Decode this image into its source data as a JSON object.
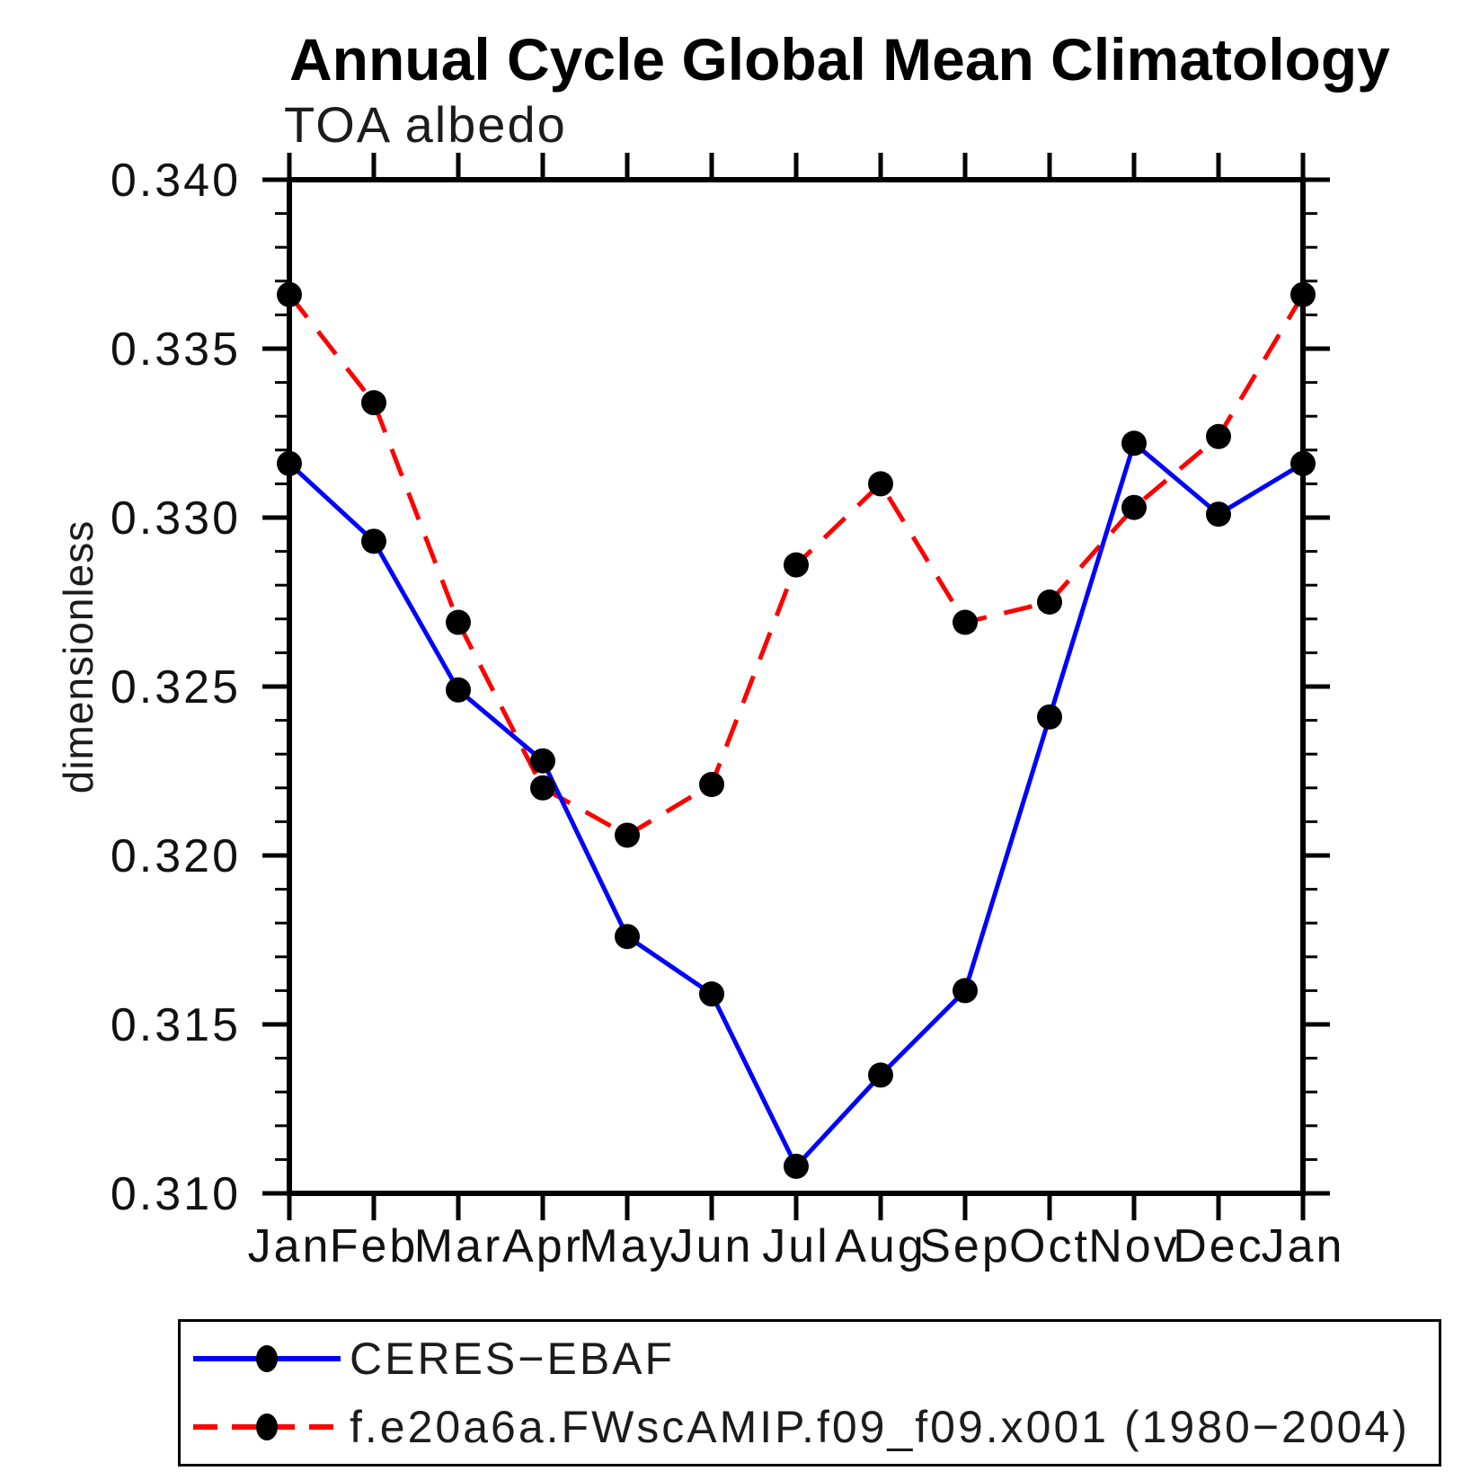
{
  "header": {
    "title": "Annual Cycle Global Mean Climatology"
  },
  "chart": {
    "subtitle": "TOA albedo",
    "ylabel": "dimensionless"
  },
  "colors": {
    "ceres_line": "#0000ff",
    "model_line": "#ff0000",
    "marker": "#000000",
    "axis": "#000000"
  },
  "chart_data": {
    "type": "line",
    "title": "Annual Cycle Global Mean Climatology",
    "subtitle": "TOA albedo",
    "xlabel": "",
    "ylabel": "dimensionless",
    "categories": [
      "Jan",
      "Feb",
      "Mar",
      "Apr",
      "May",
      "Jun",
      "Jul",
      "Aug",
      "Sep",
      "Oct",
      "Nov",
      "Dec",
      "Jan"
    ],
    "ylim": [
      0.31,
      0.34
    ],
    "ytick_interval": 0.005,
    "minor_tick_interval": 0.001,
    "ytick_labels": [
      "0.310",
      "0.315",
      "0.320",
      "0.325",
      "0.330",
      "0.335",
      "0.340"
    ],
    "grid": false,
    "legend_position": "bottom",
    "series": [
      {
        "name": "CERES−EBAF",
        "color": "#0000ff",
        "style": "solid",
        "marker": "circle",
        "marker_color": "#000000",
        "values": [
          0.3316,
          0.3293,
          0.3249,
          0.3228,
          0.3176,
          0.3159,
          0.3108,
          0.3135,
          0.316,
          0.3241,
          0.3322,
          0.3301,
          0.3316
        ]
      },
      {
        "name": "f.e20a6a.FWscAMIP.f09_f09.x001 (1980−2004)",
        "color": "#ff0000",
        "style": "dashed",
        "marker": "circle",
        "marker_color": "#000000",
        "values": [
          0.3366,
          0.3334,
          0.3269,
          0.322,
          0.3206,
          0.3221,
          0.3286,
          0.331,
          0.3269,
          0.3275,
          0.3303,
          0.3324,
          0.3366
        ]
      }
    ]
  }
}
